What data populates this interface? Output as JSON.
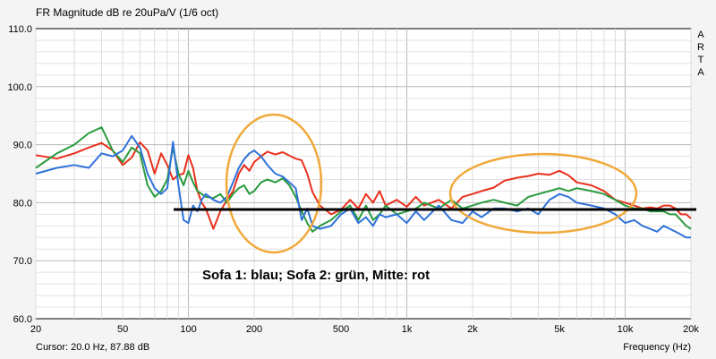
{
  "chart_data": {
    "type": "line",
    "title": "FR Magnitude dB re 20uPa/V (1/6 oct)",
    "xlabel": "Frequency (Hz)",
    "ylabel": "",
    "x_scale": "log",
    "xlim": [
      20,
      20000
    ],
    "ylim": [
      60,
      110
    ],
    "grid": true,
    "y_ticks": [
      "60.0",
      "70.0",
      "80.0",
      "90.0",
      "100.0",
      "110.0"
    ],
    "x_ticks": [
      {
        "value": 20,
        "label": "20"
      },
      {
        "value": 50,
        "label": "50"
      },
      {
        "value": 100,
        "label": "100"
      },
      {
        "value": 200,
        "label": "200"
      },
      {
        "value": 500,
        "label": "500"
      },
      {
        "value": 1000,
        "label": "1k"
      },
      {
        "value": 2000,
        "label": "2k"
      },
      {
        "value": 5000,
        "label": "5k"
      },
      {
        "value": 10000,
        "label": "10k"
      },
      {
        "value": 20000,
        "label": "20k"
      }
    ],
    "annotation": "Sofa 1: blau; Sofa 2: grün, Mitte: rot",
    "series": [
      {
        "color": "#e8301c",
        "x": [
          20,
          25,
          30,
          35,
          40,
          45,
          50,
          55,
          60,
          65,
          70,
          75,
          80,
          85,
          90,
          95,
          100,
          105,
          110,
          115,
          120,
          130,
          140,
          150,
          160,
          170,
          180,
          190,
          200,
          215,
          230,
          250,
          270,
          290,
          310,
          330,
          350,
          370,
          400,
          450,
          500,
          550,
          600,
          650,
          700,
          750,
          800,
          900,
          1000,
          1100,
          1200,
          1400,
          1600,
          1800,
          2000,
          2200,
          2500,
          2800,
          3200,
          3600,
          4000,
          4500,
          5000,
          5500,
          6000,
          7000,
          8000,
          9000,
          10000,
          11000,
          12000,
          13000,
          14000,
          15000,
          16000,
          17000,
          18000,
          19000,
          20000
        ],
        "y": [
          88.2,
          87.6,
          88.5,
          89.5,
          90.3,
          89.0,
          86.5,
          87.8,
          90.4,
          89.0,
          85.0,
          88.5,
          86.5,
          84.0,
          84.8,
          85.0,
          88.2,
          86.0,
          82.0,
          80.0,
          79.0,
          75.5,
          78.5,
          80.5,
          82.0,
          85.0,
          86.5,
          85.5,
          87.0,
          88.0,
          88.8,
          88.3,
          88.7,
          88.1,
          87.6,
          87.3,
          85.0,
          81.8,
          79.5,
          78.0,
          78.8,
          80.5,
          79.0,
          81.5,
          80.0,
          82.0,
          79.5,
          80.5,
          79.3,
          81.0,
          79.5,
          80.5,
          79.0,
          81.0,
          81.5,
          82.0,
          82.6,
          83.8,
          84.3,
          84.6,
          85.0,
          84.8,
          85.5,
          84.7,
          83.5,
          83.0,
          82.0,
          80.5,
          80.0,
          79.5,
          79.0,
          79.2,
          79.0,
          79.5,
          79.5,
          79.0,
          78.0,
          78.0,
          77.3
        ]
      },
      {
        "color": "#2a9b3e",
        "x": [
          20,
          25,
          30,
          35,
          40,
          45,
          50,
          55,
          60,
          65,
          70,
          75,
          80,
          85,
          90,
          95,
          100,
          105,
          110,
          115,
          120,
          130,
          140,
          150,
          160,
          170,
          180,
          190,
          200,
          215,
          230,
          250,
          270,
          290,
          310,
          330,
          350,
          370,
          400,
          450,
          500,
          550,
          600,
          650,
          700,
          750,
          800,
          900,
          1000,
          1100,
          1200,
          1400,
          1600,
          1800,
          2000,
          2200,
          2500,
          2800,
          3200,
          3600,
          4000,
          4500,
          5000,
          5500,
          6000,
          7000,
          8000,
          9000,
          10000,
          11000,
          12000,
          13000,
          14000,
          15000,
          16000,
          17000,
          18000,
          19000,
          20000
        ],
        "y": [
          86.0,
          88.5,
          90.0,
          92.0,
          93.0,
          89.0,
          87.0,
          89.5,
          88.5,
          83.0,
          81.0,
          82.0,
          84.0,
          89.5,
          85.0,
          83.0,
          85.5,
          83.5,
          82.0,
          81.5,
          81.0,
          80.8,
          81.5,
          80.0,
          81.5,
          82.5,
          83.0,
          81.5,
          82.0,
          83.5,
          84.0,
          83.5,
          84.2,
          83.0,
          81.0,
          78.5,
          76.5,
          75.0,
          76.0,
          77.0,
          78.5,
          79.5,
          77.0,
          79.5,
          77.0,
          78.0,
          79.5,
          78.0,
          78.5,
          79.0,
          80.0,
          79.0,
          80.5,
          79.0,
          79.5,
          80.0,
          80.5,
          80.0,
          79.5,
          81.0,
          81.5,
          82.0,
          82.5,
          82.0,
          82.5,
          82.0,
          81.5,
          80.5,
          79.5,
          79.0,
          79.0,
          78.5,
          78.5,
          78.5,
          78.0,
          78.0,
          77.0,
          76.0,
          75.5
        ]
      },
      {
        "color": "#2f72d8",
        "x": [
          20,
          25,
          30,
          35,
          40,
          45,
          50,
          55,
          60,
          65,
          70,
          75,
          80,
          85,
          90,
          95,
          100,
          105,
          110,
          115,
          120,
          130,
          140,
          150,
          160,
          170,
          180,
          190,
          200,
          215,
          230,
          250,
          270,
          290,
          310,
          330,
          350,
          370,
          400,
          450,
          500,
          550,
          600,
          650,
          700,
          750,
          800,
          900,
          1000,
          1100,
          1200,
          1400,
          1600,
          1800,
          2000,
          2200,
          2500,
          2800,
          3200,
          3600,
          4000,
          4500,
          5000,
          5500,
          6000,
          7000,
          8000,
          9000,
          10000,
          11000,
          12000,
          13000,
          14000,
          15000,
          16000,
          17000,
          18000,
          19000,
          20000
        ],
        "y": [
          85.0,
          86.0,
          86.5,
          86.0,
          88.5,
          88.0,
          89.0,
          91.5,
          89.5,
          85.0,
          82.5,
          81.5,
          82.5,
          90.5,
          83.0,
          77.0,
          76.5,
          79.5,
          78.5,
          80.5,
          81.5,
          80.5,
          80.0,
          81.0,
          83.5,
          86.0,
          87.5,
          88.5,
          89.0,
          88.0,
          86.5,
          85.0,
          84.5,
          83.5,
          82.5,
          77.0,
          79.0,
          76.0,
          75.5,
          76.0,
          78.0,
          79.0,
          76.5,
          77.5,
          76.0,
          78.0,
          77.5,
          78.0,
          76.5,
          78.5,
          77.0,
          79.5,
          77.0,
          76.5,
          78.5,
          77.5,
          79.0,
          79.0,
          78.5,
          79.0,
          78.0,
          80.5,
          81.5,
          81.0,
          80.0,
          79.5,
          79.0,
          78.0,
          76.5,
          77.0,
          76.0,
          75.5,
          75.0,
          76.0,
          75.5,
          75.0,
          74.5,
          74.0,
          74.0
        ]
      }
    ]
  },
  "status": {
    "cursor": "Cursor: 20.0 Hz, 87.88 dB"
  },
  "brand": {
    "letters": [
      "A",
      "R",
      "T",
      "A"
    ]
  }
}
